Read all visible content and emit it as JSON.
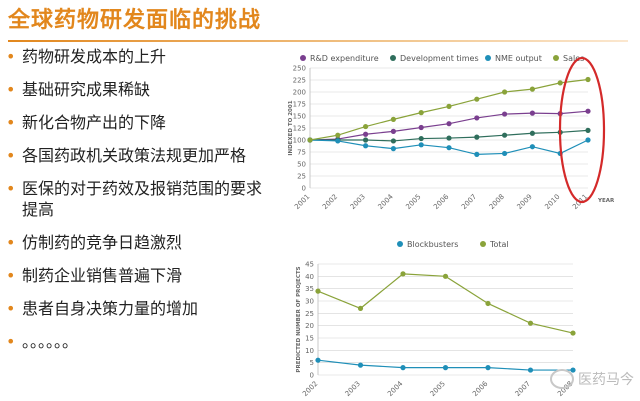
{
  "slide": {
    "title": "全球药物研发面临的挑战",
    "bullets": [
      "药物研发成本的上升",
      "基础研究成果稀缺",
      "新化合物产出的下降",
      "各国药政机关政策法规更加严格",
      "医保的对于药效及报销范围的要求提高",
      "仿制药的竞争日趋激烈",
      "制药企业销售普遍下滑",
      "患者自身决策力量的增加",
      "。。。。。。"
    ],
    "bullet_marker": "•"
  },
  "watermark": {
    "text": "医药马今"
  },
  "colors": {
    "accent": "#e2871d",
    "highlight_ellipse": "#d42a2a"
  },
  "chart_data": [
    {
      "type": "line",
      "title": "",
      "xlabel": "YEAR",
      "ylabel": "INDEXED TO 2001",
      "categories": [
        "2001",
        "2002",
        "2003",
        "2004",
        "2005",
        "2006",
        "2007",
        "2008",
        "2009",
        "2010",
        "2011"
      ],
      "ylim": [
        0,
        250
      ],
      "yticks": [
        0,
        25,
        50,
        75,
        100,
        125,
        150,
        175,
        200,
        225,
        250
      ],
      "grid": true,
      "legend": "top",
      "highlight": {
        "shape": "ellipse",
        "category": "2011"
      },
      "series": [
        {
          "name": "R&D expenditure",
          "color": "#7a3f8f",
          "values": [
            100,
            102,
            112,
            118,
            126,
            134,
            146,
            154,
            156,
            155,
            160
          ]
        },
        {
          "name": "Development times",
          "color": "#2f6e5c",
          "values": [
            100,
            100,
            100,
            98,
            103,
            104,
            106,
            110,
            114,
            116,
            120
          ]
        },
        {
          "name": "NME output",
          "color": "#1f8fb8",
          "values": [
            100,
            98,
            88,
            82,
            90,
            84,
            70,
            72,
            86,
            72,
            100
          ]
        },
        {
          "name": "Sales",
          "color": "#8aa33a",
          "values": [
            100,
            110,
            128,
            143,
            157,
            170,
            185,
            200,
            206,
            219,
            226
          ]
        }
      ]
    },
    {
      "type": "line",
      "title": "",
      "xlabel": "",
      "ylabel": "PREDICTED NUMBER OF PROJECTS",
      "categories": [
        "2002",
        "2003",
        "2004",
        "2005",
        "2006",
        "2007",
        "2008"
      ],
      "ylim": [
        0,
        45
      ],
      "yticks": [
        0,
        5,
        10,
        15,
        20,
        25,
        30,
        35,
        40,
        45
      ],
      "grid": true,
      "legend": "top",
      "series": [
        {
          "name": "Blockbusters",
          "color": "#1f8fb8",
          "values": [
            6,
            4,
            3,
            3,
            3,
            2,
            2
          ]
        },
        {
          "name": "Total",
          "color": "#8aa33a",
          "values": [
            34,
            27,
            41,
            40,
            29,
            21,
            17
          ]
        }
      ]
    }
  ]
}
